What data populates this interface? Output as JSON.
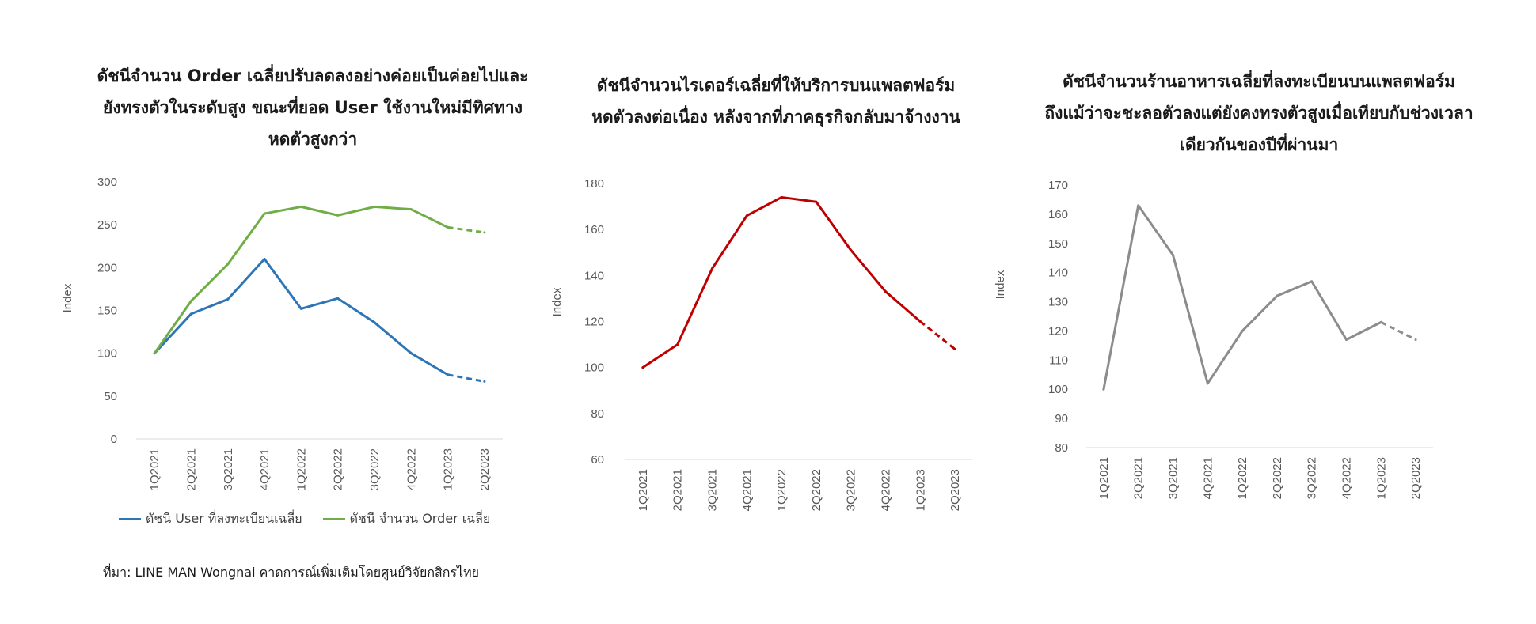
{
  "source": "ที่มา: LINE MAN Wongnai คาดการณ์เพิ่มเติมโดยศูนย์วิจัยกสิกรไทย",
  "chart_data": [
    {
      "type": "line",
      "title_lines": [
        "ดัชนีจำนวน Order เฉลี่ยปรับลดลงอย่างค่อยเป็นค่อยไปและ",
        "ยังทรงตัวในระดับสูง ขณะที่ยอด User ใช้งานใหม่มีทิศทาง",
        "หดตัวสูงกว่า"
      ],
      "ylabel": "Index",
      "ylim": [
        0,
        300
      ],
      "yticks": [
        0,
        50,
        100,
        150,
        200,
        250,
        300
      ],
      "categories": [
        "1Q2021",
        "2Q2021",
        "3Q2021",
        "4Q2021",
        "1Q2022",
        "2Q2022",
        "3Q2022",
        "4Q2022",
        "1Q2023",
        "2Q2023"
      ],
      "forecast_from_index": 8,
      "legend_position": "bottom",
      "series": [
        {
          "name": "ดัชนี User ที่ลงทะเบียนเฉลี่ย",
          "color": "#2e75b6",
          "values": [
            100,
            146,
            163,
            210,
            152,
            164,
            136,
            100,
            75,
            67
          ]
        },
        {
          "name": "ดัชนี จำนวน Order เฉลี่ย",
          "color": "#70ad47",
          "values": [
            100,
            161,
            204,
            263,
            271,
            261,
            271,
            268,
            247,
            241
          ]
        }
      ]
    },
    {
      "type": "line",
      "title_lines": [
        "ดัชนีจำนวนไรเดอร์เฉลี่ยที่ให้บริการบนแพลตฟอร์ม",
        "หดตัวลงต่อเนื่อง หลังจากที่ภาคธุรกิจกลับมาจ้างงาน"
      ],
      "ylabel": "Index",
      "ylim": [
        60,
        180
      ],
      "yticks": [
        60,
        80,
        100,
        120,
        140,
        160,
        180
      ],
      "categories": [
        "1Q2021",
        "2Q2021",
        "3Q2021",
        "4Q2021",
        "1Q2022",
        "2Q2022",
        "3Q2022",
        "4Q2022",
        "1Q2023",
        "2Q2023"
      ],
      "forecast_from_index": 8,
      "series": [
        {
          "color": "#c00000",
          "values": [
            100,
            110,
            143,
            166,
            174,
            172,
            151,
            133,
            120,
            108
          ]
        }
      ]
    },
    {
      "type": "line",
      "title_lines": [
        "ดัชนีจำนวนร้านอาหารเฉลี่ยที่ลงทะเบียนบนแพลตฟอร์ม",
        "ถึงแม้ว่าจะชะลอตัวลงแต่ยังคงทรงตัวสูงเมื่อเทียบกับช่วงเวลา",
        "เดียวกันของปีที่ผ่านมา"
      ],
      "ylabel": "Index",
      "ylim": [
        80,
        170
      ],
      "yticks": [
        80,
        90,
        100,
        110,
        120,
        130,
        140,
        150,
        160,
        170
      ],
      "categories": [
        "1Q2021",
        "2Q2021",
        "3Q2021",
        "4Q2021",
        "1Q2022",
        "2Q2022",
        "3Q2022",
        "4Q2022",
        "1Q2023",
        "2Q2023"
      ],
      "forecast_from_index": 8,
      "series": [
        {
          "color": "#8c8c8c",
          "values": [
            100,
            163,
            146,
            102,
            120,
            132,
            137,
            117,
            123,
            117
          ]
        }
      ]
    }
  ]
}
